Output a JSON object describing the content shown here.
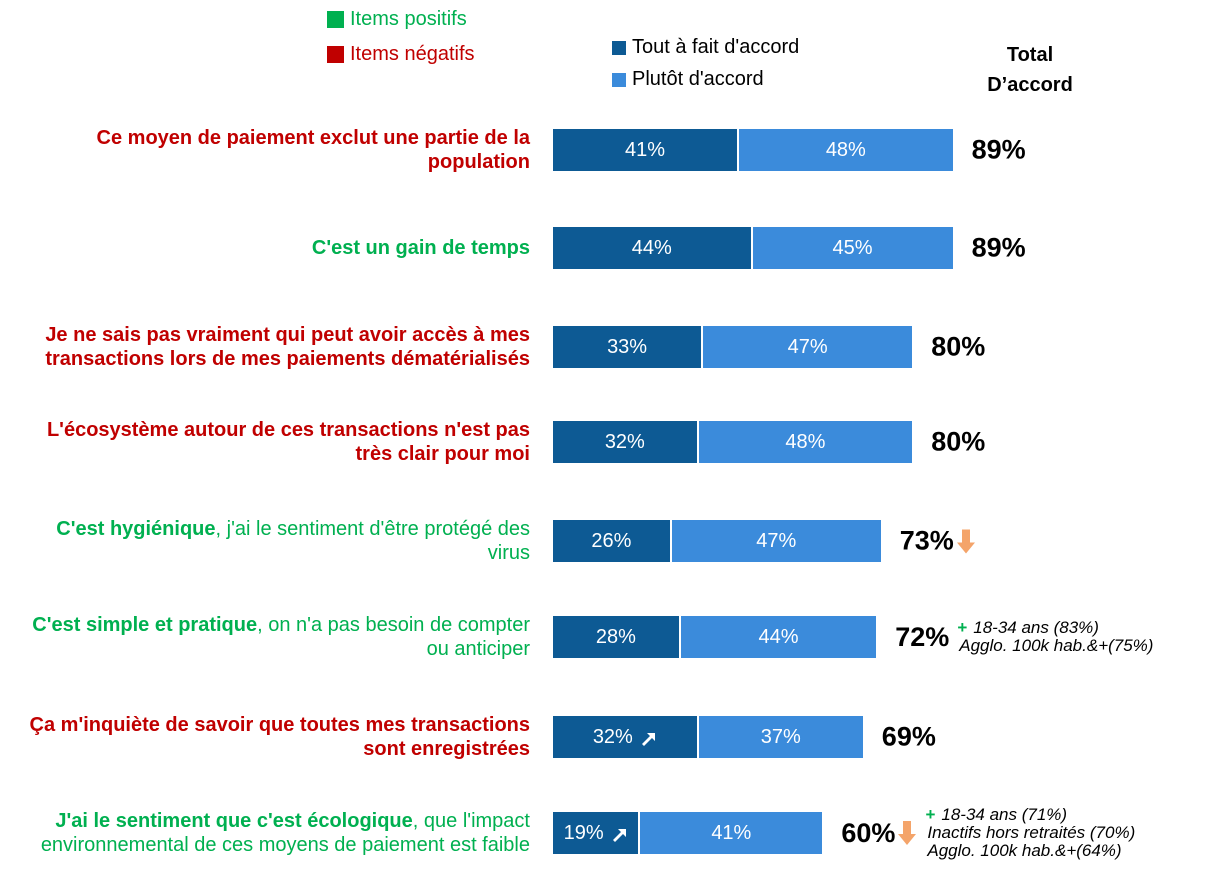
{
  "chart_data": {
    "type": "stacked-bar-horizontal",
    "item_legend": [
      {
        "name": "Items positifs",
        "color": "#00b050"
      },
      {
        "name": "Items négatifs",
        "color": "#c00000"
      }
    ],
    "categories": [
      {
        "bold": "Ce moyen de paiement exclut une partie de la population"
      },
      {
        "bold": "C'est un gain de temps"
      },
      {
        "bold": "Je ne sais pas vraiment qui peut avoir accès à mes transactions lors de mes paiements dématérialisés"
      },
      {
        "bold": "L'écosystème autour de ces transactions n'est pas très clair pour moi"
      },
      {
        "bold": "C'est hygiénique",
        "regular": ", j'ai le sentiment d'être protégé des virus"
      },
      {
        "bold": "C'est simple et pratique",
        "regular": ", on n'a pas besoin de compter ou anticiper"
      },
      {
        "bold": "Ça m'inquiète de savoir que toutes mes transactions sont enregistrées"
      },
      {
        "bold": "J'ai le sentiment que c'est écologique",
        "regular": ", que l'impact environnemental de ces moyens de paiement est faible"
      }
    ],
    "category_kind": [
      1,
      0,
      1,
      1,
      0,
      0,
      1,
      0
    ],
    "series": [
      {
        "name": "Tout à fait d'accord",
        "color": "#0d5a94",
        "values": [
          41,
          44,
          33,
          32,
          26,
          28,
          32,
          19
        ],
        "value_labels": [
          "41%",
          "44%",
          "33%",
          "32%",
          "26%",
          "28%",
          "32%",
          "19%"
        ],
        "trends": [
          null,
          null,
          null,
          null,
          null,
          null,
          "up",
          "up"
        ]
      },
      {
        "name": "Plutôt d'accord",
        "color": "#3b8bdb",
        "values": [
          48,
          45,
          47,
          48,
          47,
          44,
          37,
          41
        ],
        "value_labels": [
          "48%",
          "45%",
          "47%",
          "48%",
          "47%",
          "44%",
          "37%",
          "41%"
        ]
      }
    ],
    "total_header": [
      "Total",
      "D’accord"
    ],
    "totals": [
      89,
      89,
      80,
      80,
      73,
      72,
      69,
      60
    ],
    "total_labels": [
      "89%",
      "89%",
      "80%",
      "80%",
      "73%",
      "72%",
      "69%",
      "60%"
    ],
    "total_trends": [
      null,
      null,
      null,
      null,
      "down",
      null,
      null,
      "down"
    ],
    "trend_color": "#f4a46a",
    "annotations": [
      {
        "row": 5,
        "marker": "+",
        "lines": [
          "18-34 ans (83%)",
          "Agglo. 100k hab.&+(75%)"
        ]
      },
      {
        "row": 7,
        "marker": "+",
        "lines": [
          "18-34 ans (71%)",
          "Inactifs hors retraités (70%)",
          "Agglo. 100k hab.&+(64%)"
        ]
      }
    ],
    "annotation_marker_color": "#00b050",
    "xlim": [
      0,
      100
    ]
  }
}
